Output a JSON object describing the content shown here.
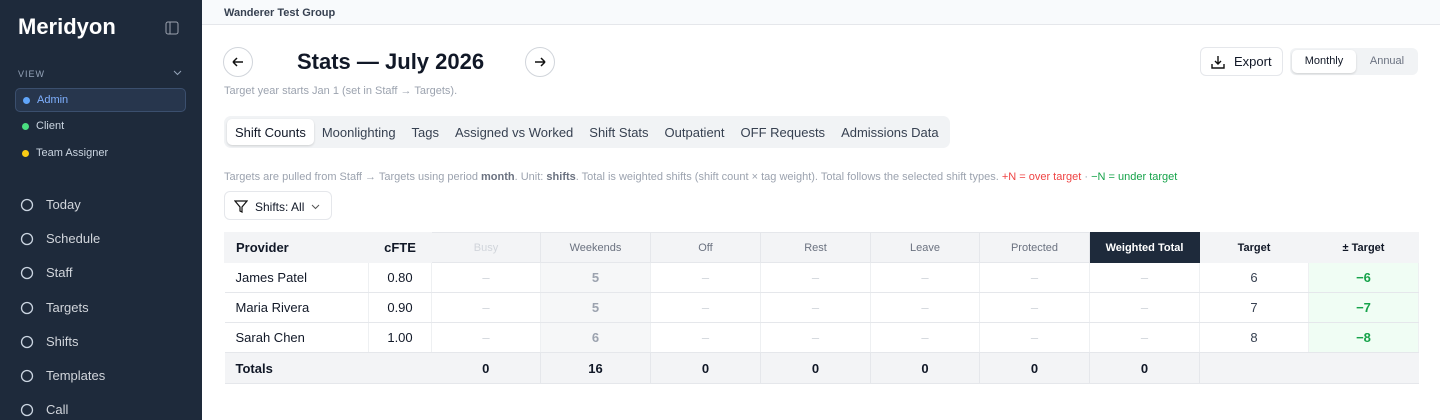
{
  "sidebar": {
    "brand": "Meridyon",
    "view_label": "VIEW",
    "views": [
      "Admin",
      "Client",
      "Team Assigner"
    ],
    "nav": [
      "Today",
      "Schedule",
      "Staff",
      "Targets",
      "Shifts",
      "Templates",
      "Call"
    ]
  },
  "header": {
    "group": "Wanderer Test Group",
    "title": "Stats — July 2026",
    "subtitle": "Target year starts Jan 1 (set in Staff → Targets).",
    "export": "Export",
    "periods": [
      "Monthly",
      "Annual"
    ]
  },
  "tabs": [
    "Shift Counts",
    "Moonlighting",
    "Tags",
    "Assigned vs Worked",
    "Shift Stats",
    "Outpatient",
    "OFF Requests",
    "Admissions Data"
  ],
  "note": [
    "Targets are pulled from Staff → Targets using period ",
    "month",
    ". Unit: ",
    "shifts",
    ". Total is weighted shifts (shift count × tag weight). Total follows the selected shift types. ",
    "+N = over target",
    " · ",
    "−N = under target"
  ],
  "filter": "Shifts: All",
  "table": {
    "columns": [
      "Provider",
      "cFTE",
      "Busy",
      "Weekends",
      "Off",
      "Rest",
      "Leave",
      "Protected",
      "Weighted Total",
      "Target",
      "± Target"
    ],
    "rows": [
      [
        "James Patel",
        "0.80",
        "–",
        "5",
        "–",
        "–",
        "–",
        "–",
        "–",
        "6",
        "−6"
      ],
      [
        "Maria Rivera",
        "0.90",
        "–",
        "5",
        "–",
        "–",
        "–",
        "–",
        "–",
        "7",
        "−7"
      ],
      [
        "Sarah Chen",
        "1.00",
        "–",
        "6",
        "–",
        "–",
        "–",
        "–",
        "–",
        "8",
        "−8"
      ]
    ],
    "totals": {
      "label": "Totals",
      "values": [
        0,
        16,
        0,
        0,
        0,
        0,
        0
      ]
    }
  }
}
